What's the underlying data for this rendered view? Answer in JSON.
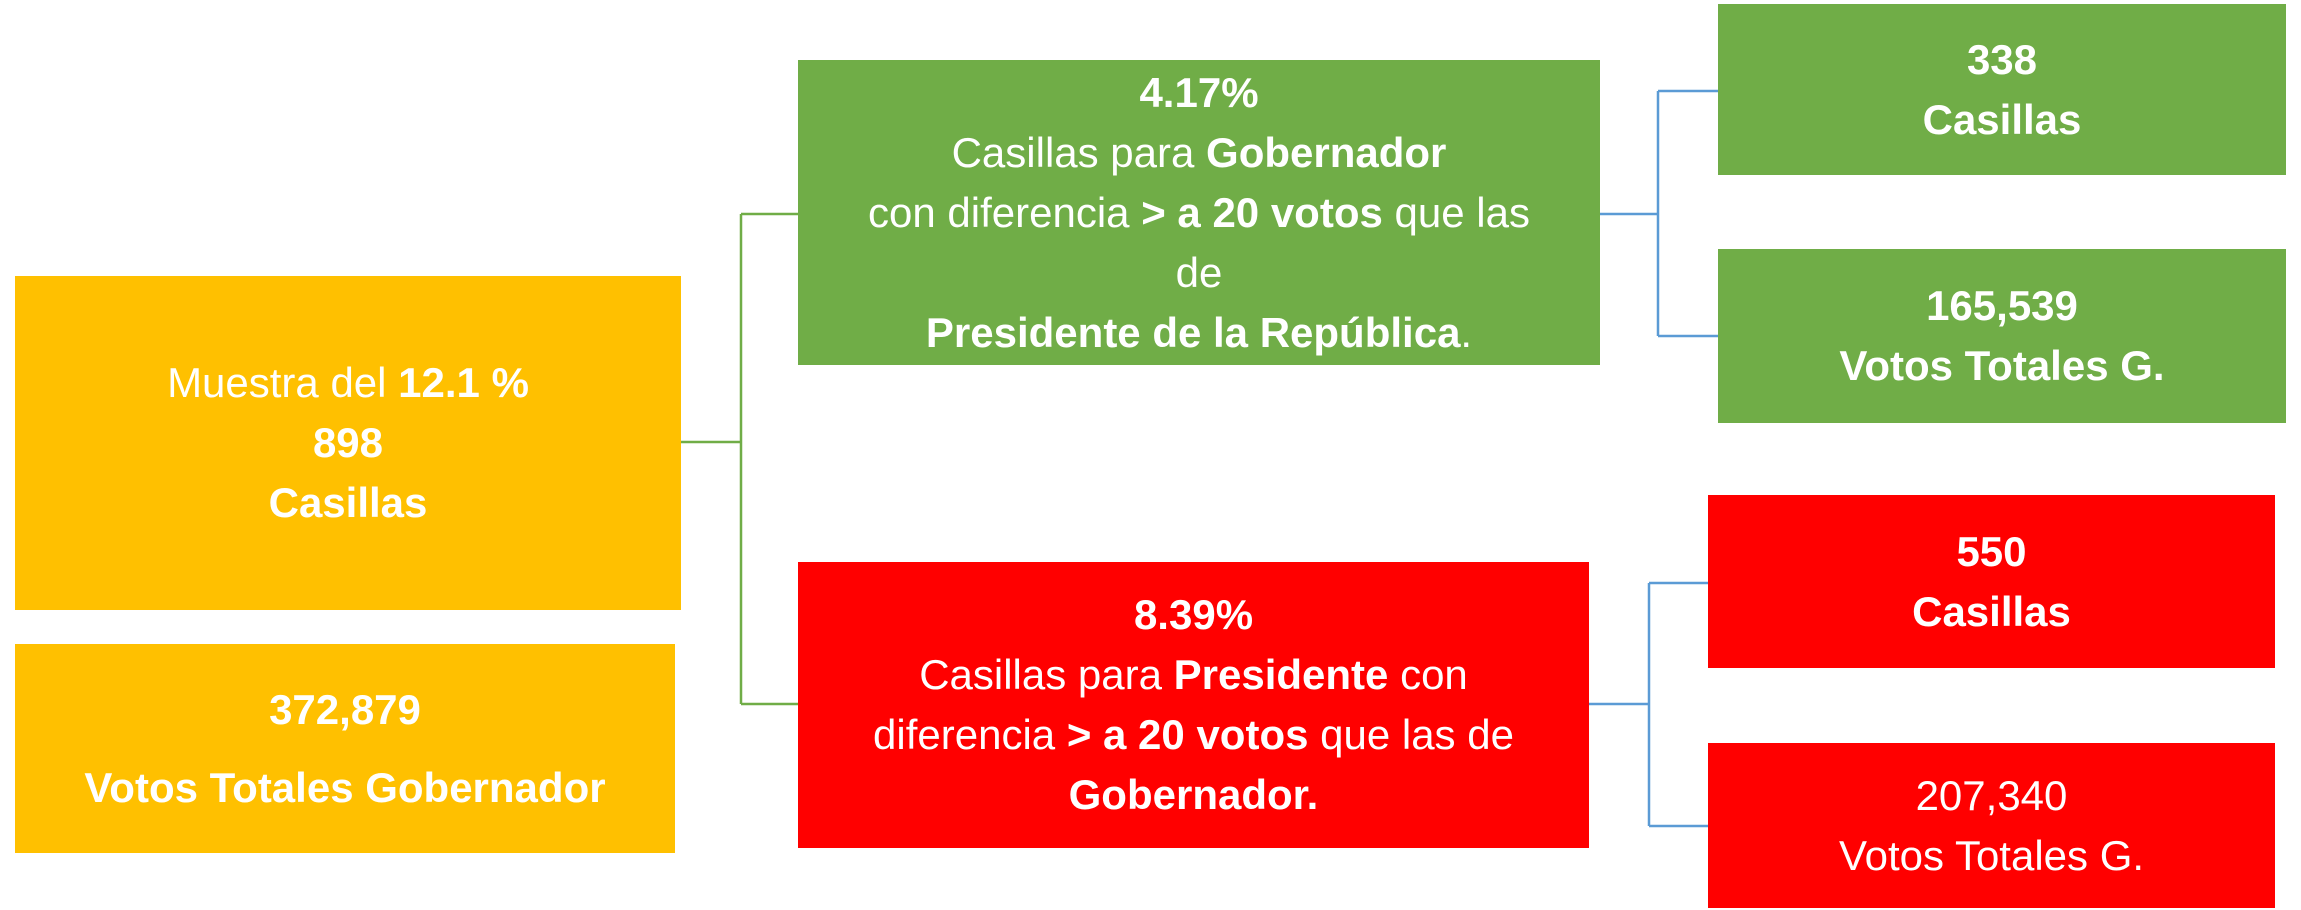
{
  "nodes": [
    {
      "lines": [
        [
          "Muestra del ",
          "12.1 %"
        ],
        [
          "898"
        ],
        [
          "Casillas"
        ]
      ]
    },
    {
      "lines": [
        [
          "372,879"
        ],
        [
          "Votos Totales Gobernador"
        ]
      ]
    },
    {
      "lines": [
        [
          "4.17%"
        ],
        [
          "Casillas para ",
          "Gobernador"
        ],
        [
          "con diferencia ",
          "> a 20 votos",
          " que las"
        ],
        [
          "de"
        ],
        [
          "Presidente de la República",
          "."
        ]
      ]
    },
    {
      "lines": [
        [
          "8.39%"
        ],
        [
          "Casillas para ",
          "Presidente",
          " con"
        ],
        [
          "diferencia ",
          "> a 20 votos",
          " que las de"
        ],
        [
          "Gobernador."
        ]
      ]
    },
    {
      "lines": [
        [
          "338"
        ],
        [
          "Casillas"
        ]
      ]
    },
    {
      "lines": [
        [
          "165,539"
        ],
        [
          "Votos Totales G."
        ]
      ]
    },
    {
      "lines": [
        [
          "550"
        ],
        [
          "Casillas"
        ]
      ]
    },
    {
      "lines": [
        [
          "207,340"
        ],
        [
          "Votos Totales G."
        ]
      ]
    }
  ]
}
